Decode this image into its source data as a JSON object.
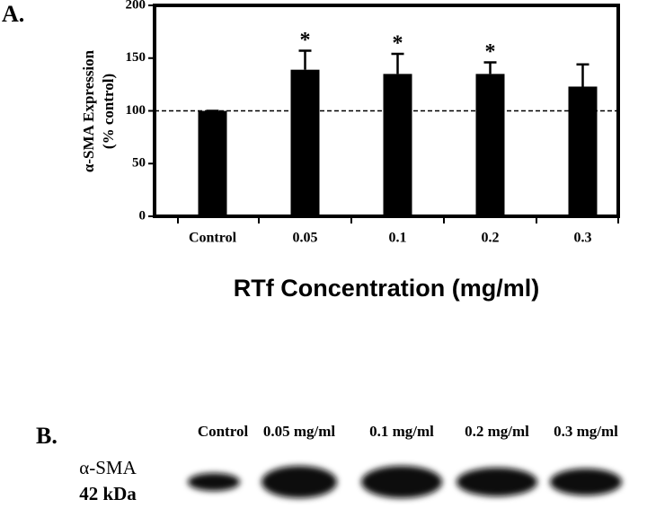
{
  "chart_data": {
    "type": "bar",
    "panel_label": "A.",
    "ylabel": [
      "α-SMA Expression",
      "(% control)"
    ],
    "xlabel": "RTf Concentration (mg/ml)",
    "categories": [
      "Control",
      "0.05",
      "0.1",
      "0.2",
      "0.3"
    ],
    "values": [
      100,
      139,
      135,
      135,
      123
    ],
    "errors": [
      0,
      18,
      19,
      11,
      21
    ],
    "significant": [
      false,
      true,
      true,
      true,
      false
    ],
    "significance_label": "*",
    "reference_line": 100,
    "color": "#000000",
    "ylim": [
      0,
      200
    ],
    "yticks": [
      0,
      50,
      100,
      150,
      200
    ],
    "grid": false
  },
  "blot": {
    "panel_label": "B.",
    "lanes": [
      "Control",
      "0.05 mg/ml",
      "0.1 mg/ml",
      "0.2 mg/ml",
      "0.3 mg/ml"
    ],
    "row_label": [
      "α-SMA",
      "42 kDa"
    ]
  }
}
